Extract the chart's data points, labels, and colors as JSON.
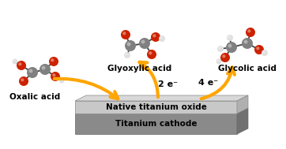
{
  "bg_color": "#ffffff",
  "arrow_color": "#FFA500",
  "native_label": "Native titanium oxide",
  "cathode_label": "Titanium cathode",
  "oxalic_label": "Oxalic acid",
  "glyoxylic_label": "Glyoxylic acid",
  "glycolic_label": "Glycolic acid",
  "e2_label": "2 e⁻",
  "e4_label": "4 e⁻",
  "label_fontsize": 7.5,
  "layer_label_fontsize": 7.5,
  "C_col": "#808080",
  "O_col": "#CC2200",
  "H_col": "#e0e0e0",
  "bond_col": "#444444"
}
